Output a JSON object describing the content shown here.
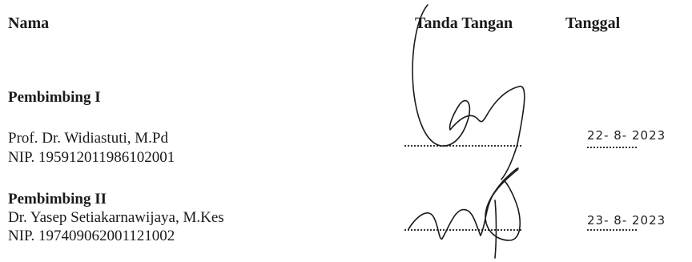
{
  "headers": {
    "name": "Nama",
    "signature": "Tanda Tangan",
    "date": "Tanggal"
  },
  "advisor1": {
    "role": "Pembimbing I",
    "name": "Prof. Dr. Widiastuti, M.Pd",
    "nip": "NIP. 195912011986102001",
    "signed_date": "22- 8- 2023"
  },
  "advisor2": {
    "role": "Pembimbing II",
    "name": "Dr. Yasep Setiakarnawijaya, M.Kes",
    "nip": "NIP. 197409062001121002",
    "signed_date": "23- 8- 2023"
  }
}
